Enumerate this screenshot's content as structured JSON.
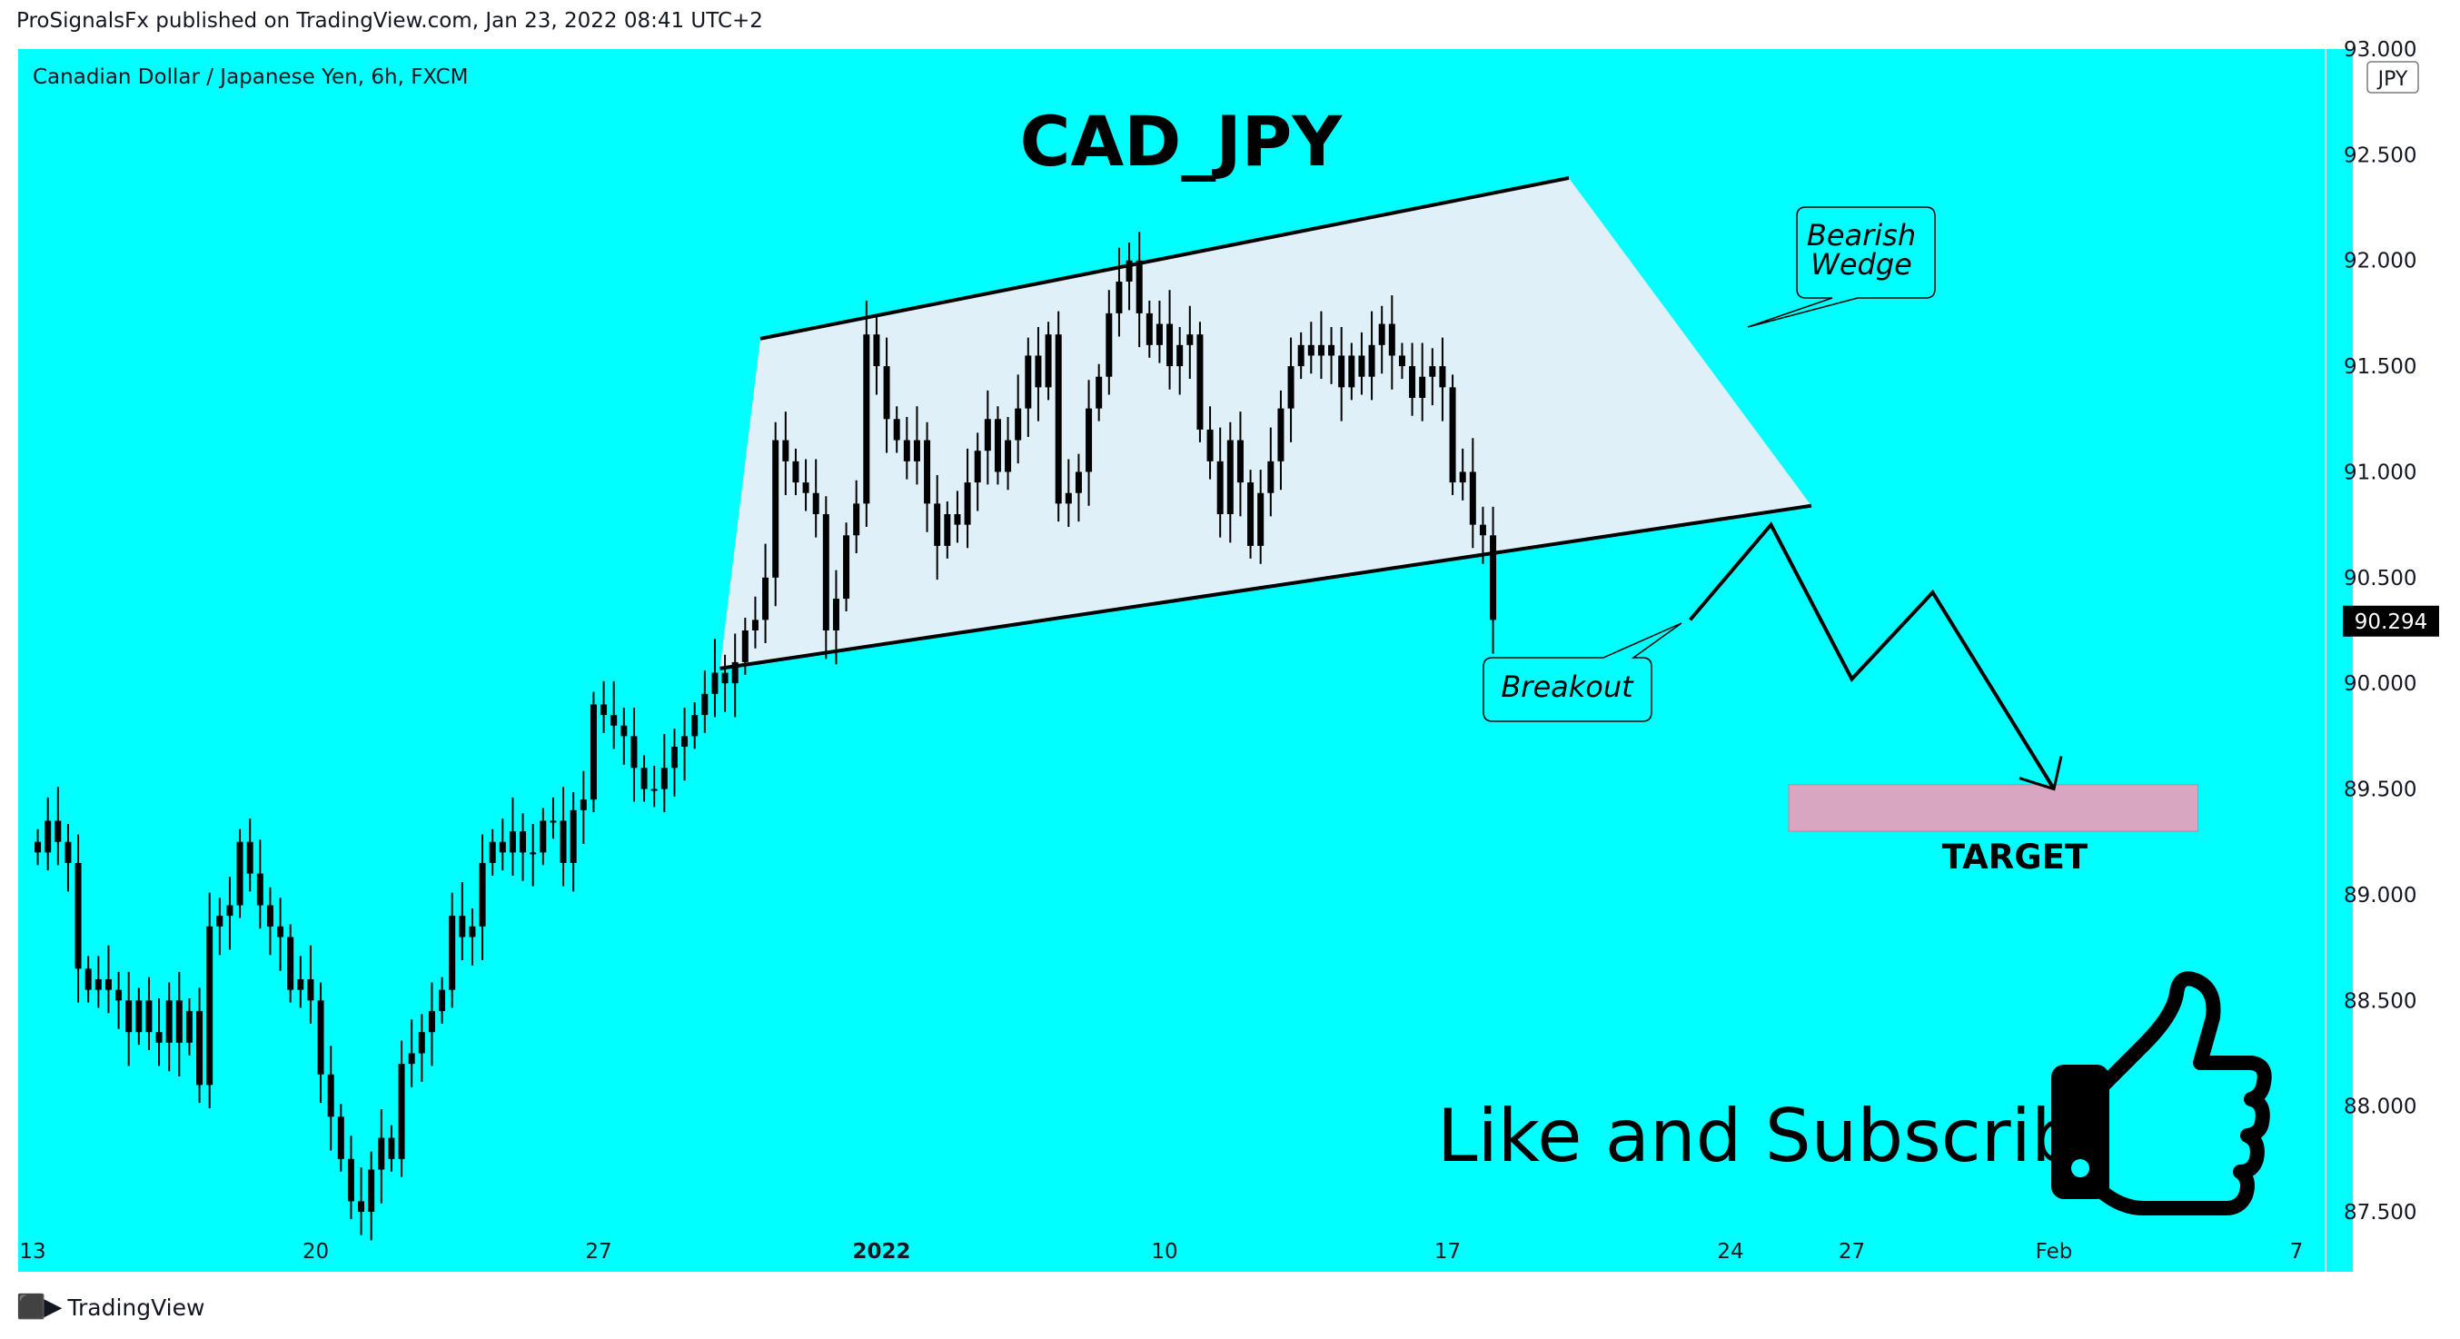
{
  "header": {
    "published": "ProSignalsFx published on TradingView.com, Jan 23, 2022 08:41 UTC+2"
  },
  "footer": {
    "brand": "TradingView"
  },
  "colors": {
    "background": "#00ffff",
    "candle": "#000000",
    "wedge_fill": "#dff0f8",
    "target_fill": "#d8a6c0",
    "price_tag_bg": "#000000"
  },
  "chart_data": {
    "type": "candlestick",
    "symbol": "Canadian Dollar / Japanese Yen, 6h, FXCM",
    "title": "CAD_JPY",
    "currency": "JPY",
    "last_price": "90.294",
    "y_ticks": [
      "93.000",
      "92.500",
      "92.000",
      "91.500",
      "91.000",
      "90.500",
      "90.000",
      "89.500",
      "89.000",
      "88.500",
      "88.000",
      "87.500"
    ],
    "y_values": [
      93.0,
      92.5,
      92.0,
      91.5,
      91.0,
      90.5,
      90.0,
      89.5,
      89.0,
      88.5,
      88.0,
      87.5
    ],
    "x_ticks": [
      {
        "label": "13",
        "date": "2021-12-13",
        "bold": false
      },
      {
        "label": "20",
        "date": "2021-12-20",
        "bold": false
      },
      {
        "label": "27",
        "date": "2021-12-27",
        "bold": false
      },
      {
        "label": "2022",
        "date": "2022-01-03",
        "bold": true
      },
      {
        "label": "10",
        "date": "2022-01-10",
        "bold": false
      },
      {
        "label": "17",
        "date": "2022-01-17",
        "bold": false
      },
      {
        "label": "24",
        "date": "2022-01-24",
        "bold": false
      },
      {
        "label": "27",
        "date": "2022-01-27",
        "bold": false
      },
      {
        "label": "Feb",
        "date": "2022-02-01",
        "bold": false
      },
      {
        "label": "7",
        "date": "2022-02-07",
        "bold": false
      }
    ],
    "ylim": [
      87.35,
      93.0
    ],
    "closes": [
      89.2,
      89.35,
      89.25,
      89.15,
      88.65,
      88.55,
      88.6,
      88.55,
      88.5,
      88.35,
      88.5,
      88.35,
      88.3,
      88.5,
      88.3,
      88.45,
      88.1,
      88.85,
      88.9,
      88.95,
      89.25,
      89.1,
      88.95,
      88.85,
      88.8,
      88.55,
      88.6,
      88.5,
      88.15,
      87.95,
      87.75,
      87.55,
      87.5,
      87.7,
      87.85,
      87.75,
      88.2,
      88.25,
      88.35,
      88.45,
      88.55,
      88.9,
      88.8,
      88.85,
      89.15,
      89.25,
      89.2,
      89.3,
      89.2,
      89.2,
      89.35,
      89.35,
      89.15,
      89.4,
      89.45,
      89.9,
      89.85,
      89.8,
      89.75,
      89.6,
      89.5,
      89.5,
      89.6,
      89.7,
      89.75,
      89.85,
      89.95,
      90.05,
      90.0,
      90.1,
      90.25,
      90.3,
      90.5,
      91.15,
      91.05,
      90.95,
      90.9,
      90.8,
      90.25,
      90.4,
      90.7,
      90.85,
      91.65,
      91.5,
      91.25,
      91.15,
      91.05,
      91.15,
      90.85,
      90.65,
      90.8,
      90.75,
      90.95,
      91.1,
      91.25,
      91.0,
      91.15,
      91.3,
      91.55,
      91.4,
      91.65,
      90.85,
      90.9,
      91.0,
      91.3,
      91.45,
      91.75,
      91.9,
      92.0,
      91.75,
      91.6,
      91.7,
      91.5,
      91.6,
      91.65,
      91.2,
      91.05,
      90.8,
      91.15,
      90.95,
      90.65,
      90.9,
      91.05,
      91.3,
      91.5,
      91.6,
      91.55,
      91.6,
      91.55,
      91.4,
      91.55,
      91.45,
      91.6,
      91.7,
      91.55,
      91.5,
      91.35,
      91.45,
      91.5,
      91.4,
      90.95,
      91.0,
      90.75,
      90.7,
      90.3
    ],
    "wedge_upper": [
      [
        "2021-12-31",
        91.63
      ],
      [
        "2022-01-20",
        92.39
      ]
    ],
    "wedge_lower": [
      [
        "2021-12-30",
        90.07
      ],
      [
        "2022-01-26",
        90.84
      ]
    ],
    "target_zone": {
      "from": "2022-01-26",
      "to": "2022-02-04",
      "low": 89.3,
      "high": 89.52,
      "label": "TARGET"
    },
    "projection_path": [
      [
        "2022-01-23",
        90.3
      ],
      [
        "2022-01-25",
        90.75
      ],
      [
        "2022-01-27",
        90.02
      ],
      [
        "2022-01-29",
        90.43
      ],
      [
        "2022-02-01",
        89.5
      ]
    ],
    "annotations": [
      {
        "text": "Bearish\nWedge"
      },
      {
        "text": "Breakout"
      }
    ],
    "cta": "Like and Subscribe"
  }
}
